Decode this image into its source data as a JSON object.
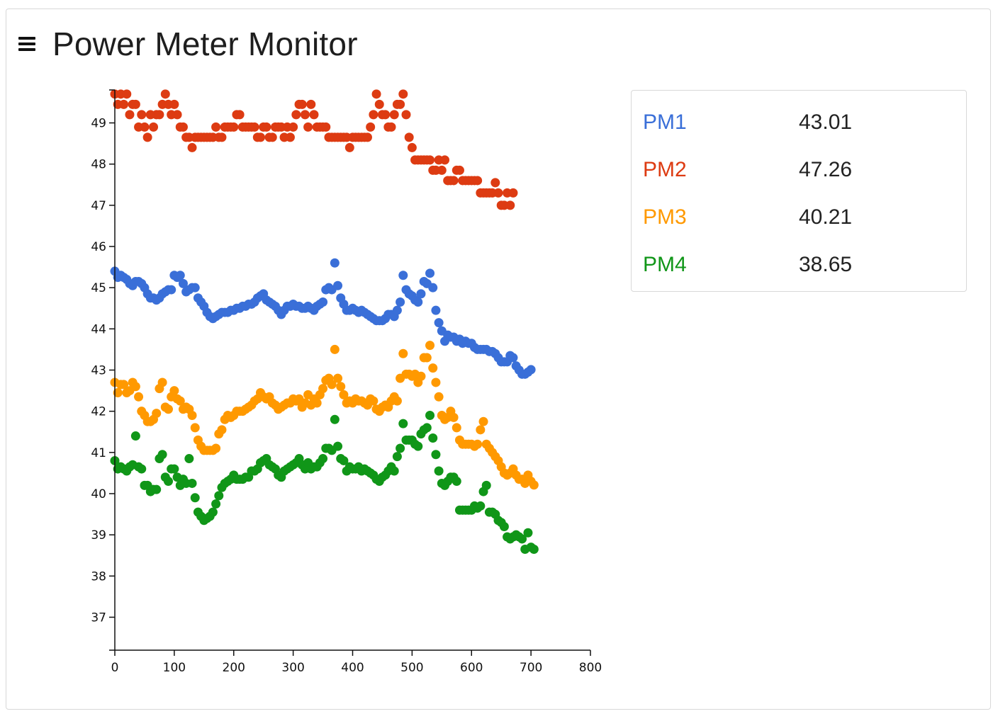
{
  "app": {
    "title": "Power Meter Monitor",
    "menu_icon": "hamburger-menu-icon"
  },
  "legend": [
    {
      "name": "PM1",
      "value": "43.01",
      "color": "#3a6fd8"
    },
    {
      "name": "PM2",
      "value": "47.26",
      "color": "#dd3b12"
    },
    {
      "name": "PM3",
      "value": "40.21",
      "color": "#ff9900"
    },
    {
      "name": "PM4",
      "value": "38.65",
      "color": "#109618"
    }
  ],
  "chart_data": {
    "type": "scatter",
    "xlim": [
      0,
      800
    ],
    "ylim": [
      36.2,
      49.8
    ],
    "x_ticks": [
      0,
      100,
      200,
      300,
      400,
      500,
      600,
      700,
      800
    ],
    "y_ticks": [
      37,
      38,
      39,
      40,
      41,
      42,
      43,
      44,
      45,
      46,
      47,
      48,
      49
    ],
    "x_step": 5,
    "grid": false,
    "series": [
      {
        "name": "PM1",
        "color": "#3a6fd8",
        "values": [
          45.4,
          45.25,
          45.3,
          45.25,
          45.2,
          45.1,
          45.05,
          45.15,
          45.15,
          45.1,
          45.0,
          44.85,
          44.75,
          44.75,
          44.7,
          44.75,
          44.85,
          44.9,
          44.95,
          44.95,
          45.3,
          45.25,
          45.3,
          45.1,
          44.9,
          44.95,
          45.0,
          45.0,
          44.75,
          44.65,
          44.55,
          44.4,
          44.3,
          44.25,
          44.3,
          44.35,
          44.4,
          44.4,
          44.4,
          44.45,
          44.45,
          44.5,
          44.5,
          44.55,
          44.55,
          44.6,
          44.6,
          44.65,
          44.75,
          44.8,
          44.85,
          44.7,
          44.65,
          44.6,
          44.55,
          44.45,
          44.35,
          44.45,
          44.55,
          44.55,
          44.6,
          44.55,
          44.55,
          44.5,
          44.5,
          44.55,
          44.5,
          44.45,
          44.55,
          44.6,
          44.65,
          44.95,
          45.0,
          44.95,
          45.6,
          45.05,
          44.75,
          44.6,
          44.45,
          44.45,
          44.5,
          44.45,
          44.4,
          44.45,
          44.4,
          44.35,
          44.3,
          44.25,
          44.2,
          44.2,
          44.2,
          44.25,
          44.35,
          44.35,
          44.3,
          44.45,
          44.65,
          45.3,
          44.95,
          44.85,
          44.8,
          44.7,
          44.65,
          44.85,
          45.15,
          45.1,
          45.35,
          45.0,
          44.45,
          44.15,
          43.95,
          43.7,
          43.85,
          43.8,
          43.8,
          43.7,
          43.75,
          43.65,
          43.7,
          43.65,
          43.65,
          43.55,
          43.5,
          43.5,
          43.5,
          43.5,
          43.45,
          43.45,
          43.4,
          43.3,
          43.2,
          43.2,
          43.2,
          43.35,
          43.3,
          43.1,
          43.0,
          42.9,
          42.9,
          42.95,
          43.01
        ]
      },
      {
        "name": "PM2",
        "color": "#dd3b12",
        "values": [
          49.7,
          49.45,
          49.7,
          49.45,
          49.7,
          49.2,
          49.45,
          49.45,
          48.9,
          49.2,
          48.9,
          48.65,
          49.2,
          48.9,
          49.2,
          49.2,
          49.45,
          49.7,
          49.45,
          49.2,
          49.45,
          49.2,
          48.9,
          48.9,
          48.65,
          48.65,
          48.4,
          48.65,
          48.65,
          48.65,
          48.65,
          48.65,
          48.65,
          48.65,
          48.9,
          48.65,
          48.65,
          48.9,
          48.9,
          48.9,
          48.9,
          49.2,
          49.2,
          48.9,
          48.9,
          48.9,
          48.9,
          48.9,
          48.65,
          48.65,
          48.9,
          48.9,
          48.65,
          48.65,
          48.9,
          48.9,
          48.9,
          48.65,
          48.9,
          48.65,
          48.9,
          49.2,
          49.45,
          49.45,
          49.2,
          48.9,
          49.45,
          49.2,
          48.9,
          48.9,
          48.9,
          48.9,
          48.65,
          48.65,
          48.65,
          48.65,
          48.65,
          48.65,
          48.65,
          48.4,
          48.65,
          48.65,
          48.65,
          48.65,
          48.65,
          48.65,
          48.9,
          49.2,
          49.7,
          49.45,
          49.2,
          49.2,
          48.9,
          48.9,
          49.2,
          49.45,
          49.45,
          49.7,
          49.2,
          48.65,
          48.4,
          48.1,
          48.1,
          48.1,
          48.1,
          48.1,
          48.1,
          47.85,
          47.85,
          48.1,
          47.85,
          48.1,
          47.6,
          47.6,
          47.6,
          47.85,
          47.85,
          47.6,
          47.6,
          47.6,
          47.6,
          47.6,
          47.6,
          47.3,
          47.3,
          47.3,
          47.3,
          47.3,
          47.55,
          47.3,
          47.0,
          47.0,
          47.3,
          47.0,
          47.3
        ]
      },
      {
        "name": "PM3",
        "color": "#ff9900",
        "values": [
          42.7,
          42.45,
          42.65,
          42.65,
          42.45,
          42.5,
          42.7,
          42.6,
          42.35,
          42.0,
          41.9,
          41.75,
          41.75,
          41.8,
          41.95,
          42.55,
          42.7,
          42.1,
          42.05,
          42.35,
          42.5,
          42.3,
          42.25,
          42.05,
          42.1,
          42.05,
          41.9,
          41.6,
          41.3,
          41.15,
          41.05,
          41.05,
          41.05,
          41.05,
          41.1,
          41.45,
          41.55,
          41.8,
          41.9,
          41.85,
          41.9,
          42.0,
          42.0,
          42.0,
          42.05,
          42.1,
          42.15,
          42.25,
          42.3,
          42.45,
          42.35,
          42.3,
          42.35,
          42.2,
          42.15,
          42.05,
          42.1,
          42.15,
          42.2,
          42.2,
          42.3,
          42.25,
          42.3,
          42.1,
          42.2,
          42.4,
          42.15,
          42.3,
          42.2,
          42.4,
          42.55,
          42.75,
          42.8,
          42.65,
          43.5,
          42.8,
          42.6,
          42.4,
          42.2,
          42.25,
          42.2,
          42.3,
          42.25,
          42.25,
          42.2,
          42.15,
          42.3,
          42.25,
          42.05,
          42.0,
          42.1,
          42.15,
          42.1,
          42.25,
          42.35,
          42.25,
          42.8,
          43.4,
          42.9,
          42.9,
          42.85,
          42.9,
          42.7,
          42.85,
          43.3,
          43.3,
          43.6,
          43.05,
          42.7,
          42.35,
          41.9,
          41.8,
          41.85,
          42.0,
          41.85,
          41.6,
          41.3,
          41.2,
          41.2,
          41.2,
          41.2,
          41.15,
          41.2,
          41.55,
          41.75,
          41.2,
          41.1,
          41.0,
          40.9,
          40.8,
          40.65,
          40.5,
          40.45,
          40.5,
          40.6,
          40.45,
          40.35,
          40.35,
          40.25,
          40.45,
          40.3,
          40.21
        ]
      },
      {
        "name": "PM4",
        "color": "#109618",
        "values": [
          40.8,
          40.6,
          40.65,
          40.6,
          40.55,
          40.65,
          40.7,
          41.4,
          40.65,
          40.6,
          40.2,
          40.2,
          40.05,
          40.1,
          40.1,
          40.85,
          40.95,
          40.4,
          40.3,
          40.6,
          40.6,
          40.4,
          40.2,
          40.35,
          40.25,
          40.85,
          40.25,
          39.9,
          39.55,
          39.45,
          39.35,
          39.4,
          39.45,
          39.55,
          39.75,
          39.95,
          40.15,
          40.25,
          40.3,
          40.35,
          40.45,
          40.35,
          40.35,
          40.35,
          40.4,
          40.4,
          40.55,
          40.55,
          40.6,
          40.75,
          40.8,
          40.85,
          40.7,
          40.65,
          40.6,
          40.45,
          40.4,
          40.55,
          40.6,
          40.65,
          40.7,
          40.75,
          40.85,
          40.7,
          40.6,
          40.75,
          40.6,
          40.65,
          40.65,
          40.75,
          40.85,
          41.1,
          41.1,
          41.05,
          41.8,
          41.15,
          40.85,
          40.8,
          40.55,
          40.65,
          40.6,
          40.6,
          40.65,
          40.55,
          40.6,
          40.55,
          40.5,
          40.45,
          40.35,
          40.3,
          40.4,
          40.45,
          40.55,
          40.65,
          40.55,
          40.9,
          41.1,
          41.7,
          41.3,
          41.3,
          41.3,
          41.2,
          41.15,
          41.45,
          41.55,
          41.6,
          41.9,
          41.35,
          40.95,
          40.55,
          40.25,
          40.2,
          40.3,
          40.4,
          40.4,
          40.3,
          39.6,
          39.6,
          39.6,
          39.6,
          39.6,
          39.7,
          39.65,
          39.7,
          40.05,
          40.2,
          39.55,
          39.55,
          39.5,
          39.35,
          39.3,
          39.2,
          38.95,
          38.9,
          38.95,
          39.0,
          38.95,
          38.9,
          38.65,
          39.05,
          38.7,
          38.65
        ]
      }
    ]
  }
}
